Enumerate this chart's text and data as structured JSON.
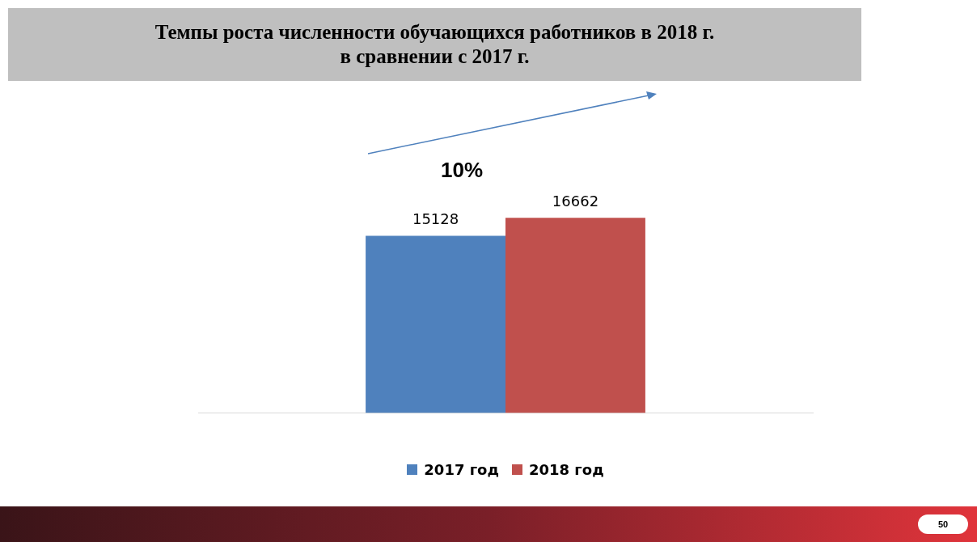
{
  "chart_data": {
    "type": "bar",
    "title": "Темпы роста численности обучающихся работников в 2018 г.\nв сравнении с 2017 г.",
    "categories": [
      null
    ],
    "series": [
      {
        "name": "2017 год",
        "color": "#4f81bd",
        "values": [
          15128
        ]
      },
      {
        "name": "2018 год",
        "color": "#c0504d",
        "values": [
          16662
        ]
      }
    ],
    "grid": false,
    "legend": "bottom",
    "data_labels": true,
    "annotations": [
      "10%",
      "50"
    ]
  }
}
